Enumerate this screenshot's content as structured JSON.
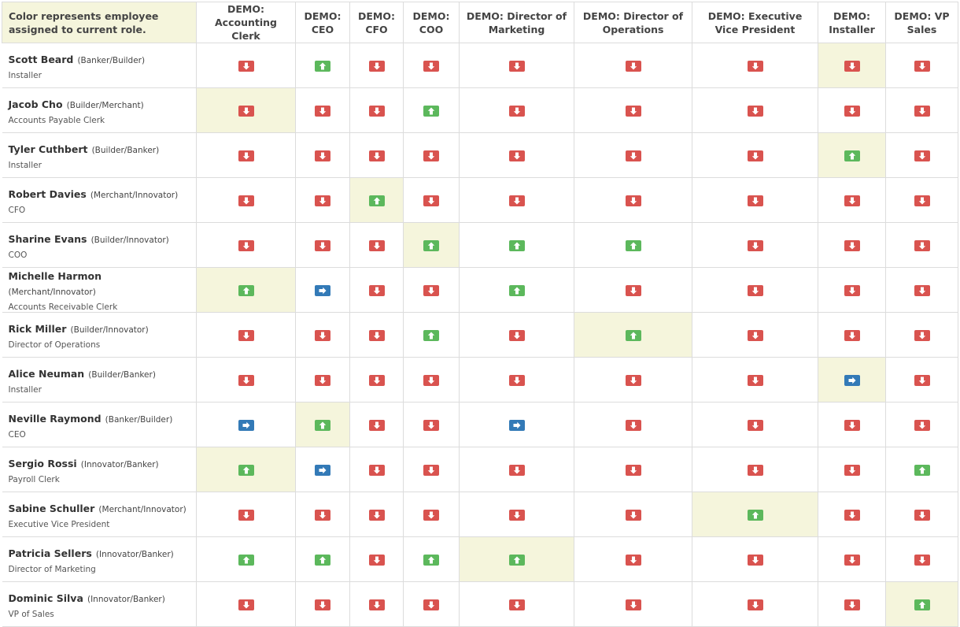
{
  "header": {
    "corner": "Color represents employee assigned to current role.",
    "roles": [
      "DEMO: Accounting Clerk",
      "DEMO: CEO",
      "DEMO: CFO",
      "DEMO: COO",
      "DEMO: Director of Marketing",
      "DEMO: Director of Operations",
      "DEMO: Executive Vice President",
      "DEMO: Installer",
      "DEMO: VP Sales"
    ]
  },
  "colors": {
    "down": "#d9534f",
    "up": "#5cb85c",
    "right": "#337ab7",
    "highlight": "#f5f5dc"
  },
  "icons": {
    "down": "arrow-down-icon",
    "up": "arrow-up-icon",
    "right": "arrow-right-icon"
  },
  "employees": [
    {
      "name": "Scott Beard",
      "motivators": "(Banker/Builder)",
      "role": "Installer",
      "assigned_col": 7,
      "indicators": [
        "down",
        "up",
        "down",
        "down",
        "down",
        "down",
        "down",
        "down",
        "down"
      ]
    },
    {
      "name": "Jacob Cho",
      "motivators": "(Builder/Merchant)",
      "role": "Accounts Payable Clerk",
      "assigned_col": 0,
      "indicators": [
        "down",
        "down",
        "down",
        "up",
        "down",
        "down",
        "down",
        "down",
        "down"
      ]
    },
    {
      "name": "Tyler Cuthbert",
      "motivators": "(Builder/Banker)",
      "role": "Installer",
      "assigned_col": 7,
      "indicators": [
        "down",
        "down",
        "down",
        "down",
        "down",
        "down",
        "down",
        "up",
        "down"
      ]
    },
    {
      "name": "Robert Davies",
      "motivators": "(Merchant/Innovator)",
      "role": "CFO",
      "assigned_col": 2,
      "indicators": [
        "down",
        "down",
        "up",
        "down",
        "down",
        "down",
        "down",
        "down",
        "down"
      ]
    },
    {
      "name": "Sharine Evans",
      "motivators": "(Builder/Innovator)",
      "role": "COO",
      "assigned_col": 3,
      "indicators": [
        "down",
        "down",
        "down",
        "up",
        "up",
        "up",
        "down",
        "down",
        "down"
      ]
    },
    {
      "name": "Michelle Harmon",
      "motivators": "(Merchant/Innovator)",
      "role": "Accounts Receivable Clerk",
      "assigned_col": 0,
      "indicators": [
        "up",
        "right",
        "down",
        "down",
        "up",
        "down",
        "down",
        "down",
        "down"
      ]
    },
    {
      "name": "Rick Miller",
      "motivators": "(Builder/Innovator)",
      "role": "Director of Operations",
      "assigned_col": 5,
      "indicators": [
        "down",
        "down",
        "down",
        "up",
        "down",
        "up",
        "down",
        "down",
        "down"
      ]
    },
    {
      "name": "Alice Neuman",
      "motivators": "(Builder/Banker)",
      "role": "Installer",
      "assigned_col": 7,
      "indicators": [
        "down",
        "down",
        "down",
        "down",
        "down",
        "down",
        "down",
        "right",
        "down"
      ]
    },
    {
      "name": "Neville Raymond",
      "motivators": "(Banker/Builder)",
      "role": "CEO",
      "assigned_col": 1,
      "indicators": [
        "right",
        "up",
        "down",
        "down",
        "right",
        "down",
        "down",
        "down",
        "down"
      ]
    },
    {
      "name": "Sergio Rossi",
      "motivators": "(Innovator/Banker)",
      "role": "Payroll Clerk",
      "assigned_col": 0,
      "indicators": [
        "up",
        "right",
        "down",
        "down",
        "down",
        "down",
        "down",
        "down",
        "up"
      ]
    },
    {
      "name": "Sabine Schuller",
      "motivators": "(Merchant/Innovator)",
      "role": "Executive Vice President",
      "assigned_col": 6,
      "indicators": [
        "down",
        "down",
        "down",
        "down",
        "down",
        "down",
        "up",
        "down",
        "down"
      ]
    },
    {
      "name": "Patricia Sellers",
      "motivators": "(Innovator/Banker)",
      "role": "Director of Marketing",
      "assigned_col": 4,
      "indicators": [
        "up",
        "up",
        "down",
        "up",
        "up",
        "down",
        "down",
        "down",
        "down"
      ]
    },
    {
      "name": "Dominic Silva",
      "motivators": "(Innovator/Banker)",
      "role": "VP of Sales",
      "assigned_col": 8,
      "indicators": [
        "down",
        "down",
        "down",
        "down",
        "down",
        "down",
        "down",
        "down",
        "up"
      ]
    }
  ]
}
